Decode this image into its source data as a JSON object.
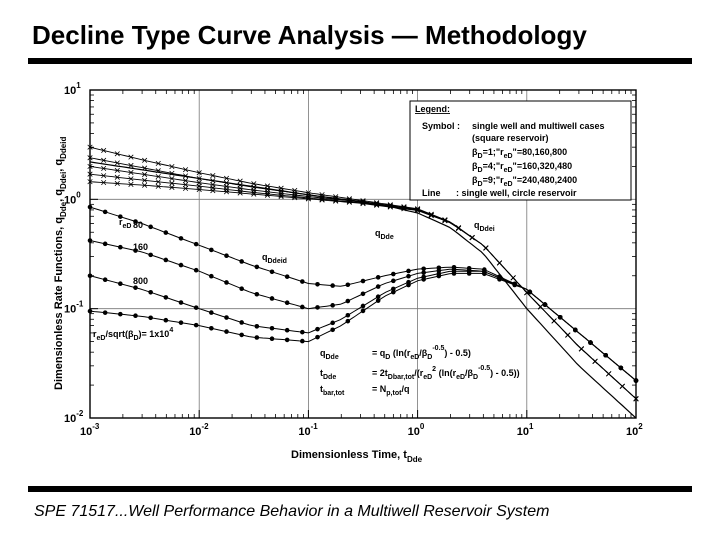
{
  "slide": {
    "title": "Decline Type Curve Analysis — Methodology",
    "footer": "SPE 71517...Well Performance Behavior in a Multiwell Reservoir System"
  },
  "chart_data": {
    "type": "line",
    "x_axis": {
      "label": "Dimensionless Time, t",
      "label_sub": "Dde",
      "scale": "log",
      "range": [
        0.001,
        100
      ],
      "ticks": [
        {
          "base": "10",
          "exp": "-3"
        },
        {
          "base": "10",
          "exp": "-2"
        },
        {
          "base": "10",
          "exp": "-1"
        },
        {
          "base": "10",
          "exp": "0"
        },
        {
          "base": "10",
          "exp": "1"
        },
        {
          "base": "10",
          "exp": "2"
        }
      ]
    },
    "y_axis": {
      "label": "Dimensionless Rate Functions, q",
      "label_subs": [
        "Dde",
        ", q",
        "Ddei",
        ", q",
        "Ddeid"
      ],
      "scale": "log",
      "range": [
        0.01,
        10
      ],
      "ticks": [
        {
          "base": "10",
          "exp": "-2"
        },
        {
          "base": "10",
          "exp": "-1"
        },
        {
          "base": "10",
          "exp": "0"
        },
        {
          "base": "10",
          "exp": "1"
        }
      ]
    },
    "grid": "decades",
    "legend": {
      "placement": "top-right",
      "title": "Legend:",
      "symbol_key": "Symbol :",
      "symbol_text": "single well and multiwell cases",
      "symbol_text2": "(square reservoir)",
      "cases": [
        {
          "beta": "=1;\"r",
          "sub": "eD",
          "values": "\"=80,160,800"
        },
        {
          "beta": "=4;\"r",
          "sub": "eD",
          "values": "\"=160,320,480"
        },
        {
          "beta": "=9;\"r",
          "sub": "eD",
          "values": "\"=240,480,2400"
        }
      ],
      "line_key": "Line",
      "line_text": ": single well, circle reservoir"
    },
    "annotations": {
      "q_dde": {
        "text": "q",
        "sub": "Dde"
      },
      "q_ddei": {
        "text": "q",
        "sub": "Ddei"
      },
      "q_ddeid": {
        "text": "q",
        "sub": "Ddeid"
      },
      "r_labels": [
        "80",
        "160",
        "800"
      ],
      "r_eD_text": "r",
      "r_eD_sub": "eD",
      "r_prefix": "e",
      "r_condition": "/sqrt(",
      "r_condition_end": ")= 1x10",
      "r_condition_exp": "4",
      "beta_char": "β",
      "beta_sub": "D",
      "equations": [
        {
          "lhs": "q",
          "lhs_sub": "Dde",
          "rhs": "= q",
          "rhs_sub": "D",
          "rhs_tail": " (ln(r",
          "rhs_tail_sub": "eD",
          "rhs_tail2": "/β",
          "rhs_tail2_sub": "D",
          "rhs_sup": "-0.5",
          "rhs_end": ") - 0.5)"
        },
        {
          "lhs": "t",
          "lhs_sub": "Dde",
          "rhs": "= 2t",
          "rhs_sub": "Dbar,tot",
          "rhs_tail": "/(r",
          "rhs_tail_sub": "eD",
          "rhs_sup2": "2",
          "rhs_tail2": " (ln(r",
          "rhs_tail2_sub": "eD",
          "rhs_tail3": "/β",
          "rhs_tail3_sub": "D",
          "rhs_sup": "-0.5",
          "rhs_end": ") - 0.5))"
        },
        {
          "lhs": "t",
          "lhs_sub": "bar,tot",
          "rhs": "= N",
          "rhs_sub": "p,tot",
          "rhs_end": "/q"
        }
      ]
    },
    "series": [
      {
        "kind": "x-markers",
        "role": "early-time rate curves (upper fan)",
        "x": [
          0.001,
          0.003,
          0.01,
          0.03,
          0.1,
          0.3,
          1,
          2,
          4,
          10,
          30,
          100
        ],
        "curves": [
          [
            3.0,
            2.3,
            1.75,
            1.4,
            1.15,
            0.98,
            0.82,
            0.62,
            0.38,
            0.14,
            0.045,
            0.015
          ],
          [
            2.4,
            1.95,
            1.55,
            1.3,
            1.1,
            0.96,
            0.81,
            0.62,
            0.38,
            0.14,
            0.045,
            0.015
          ],
          [
            2.0,
            1.7,
            1.42,
            1.22,
            1.06,
            0.95,
            0.8,
            0.61,
            0.38,
            0.14,
            0.045,
            0.015
          ],
          [
            1.7,
            1.5,
            1.32,
            1.16,
            1.03,
            0.93,
            0.8,
            0.61,
            0.38,
            0.14,
            0.045,
            0.015
          ],
          [
            1.45,
            1.35,
            1.23,
            1.12,
            1.01,
            0.92,
            0.79,
            0.61,
            0.38,
            0.14,
            0.045,
            0.015
          ]
        ]
      },
      {
        "kind": "dot-markers",
        "role": "integral rate curves",
        "x": [
          0.001,
          0.003,
          0.01,
          0.03,
          0.1,
          0.2,
          0.5,
          1,
          2,
          4,
          10,
          30,
          100
        ],
        "curves": [
          [
            0.85,
            0.6,
            0.38,
            0.25,
            0.17,
            0.16,
            0.2,
            0.23,
            0.24,
            0.23,
            0.15,
            0.06,
            0.022
          ],
          [
            0.42,
            0.33,
            0.22,
            0.14,
            0.1,
            0.11,
            0.17,
            0.21,
            0.23,
            0.22,
            0.15,
            0.06,
            0.022
          ],
          [
            0.2,
            0.15,
            0.1,
            0.07,
            0.06,
            0.08,
            0.14,
            0.19,
            0.22,
            0.22,
            0.15,
            0.06,
            0.022
          ],
          [
            0.095,
            0.085,
            0.07,
            0.055,
            0.05,
            0.07,
            0.13,
            0.18,
            0.21,
            0.21,
            0.15,
            0.06,
            0.022
          ]
        ]
      },
      {
        "kind": "line",
        "role": "q_Dde decline line",
        "x": [
          0.001,
          0.01,
          0.1,
          0.5,
          1,
          2,
          4,
          10,
          30,
          100
        ],
        "values": [
          2.2,
          1.55,
          1.1,
          0.88,
          0.75,
          0.55,
          0.32,
          0.1,
          0.03,
          0.01
        ]
      }
    ]
  }
}
